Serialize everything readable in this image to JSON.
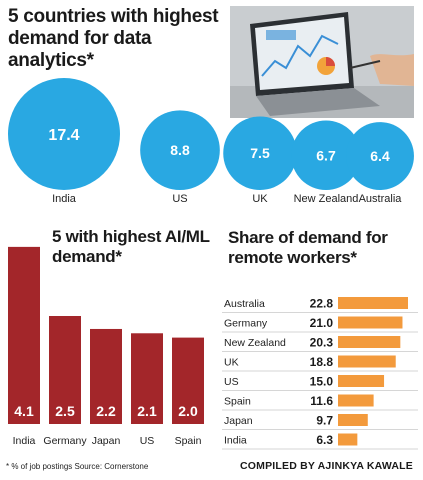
{
  "chart_data": [
    {
      "type": "bubble",
      "title": "5 countries with highest demand for data analytics*",
      "categories": [
        "India",
        "US",
        "UK",
        "New Zealand",
        "Australia"
      ],
      "values": [
        17.4,
        8.8,
        7.5,
        6.7,
        6.4
      ],
      "colors": {
        "bubble": "#29a8e2",
        "label": "#ffffff"
      }
    },
    {
      "type": "bar",
      "title": "5 with highest AI/ML demand*",
      "categories": [
        "India",
        "Germany",
        "Japan",
        "US",
        "Spain"
      ],
      "values": [
        4.1,
        2.5,
        2.2,
        2.1,
        2.0
      ],
      "colors": {
        "bar": "#a3262a",
        "label": "#ffffff"
      }
    },
    {
      "type": "bar",
      "orientation": "horizontal",
      "title": "Share of demand for remote workers*",
      "categories": [
        "Australia",
        "Germany",
        "New Zealand",
        "UK",
        "US",
        "Spain",
        "Japan",
        "India"
      ],
      "values": [
        22.8,
        21.0,
        20.3,
        18.8,
        15.0,
        11.6,
        9.7,
        6.3
      ],
      "colors": {
        "bar": "#f39a3c"
      }
    }
  ],
  "footnote": "* % of job postings  Source: Cornerstone",
  "credit": "COMPILED BY AJINKYA KAWALE",
  "photo": {
    "icon": "laptop-with-charts-photo"
  }
}
